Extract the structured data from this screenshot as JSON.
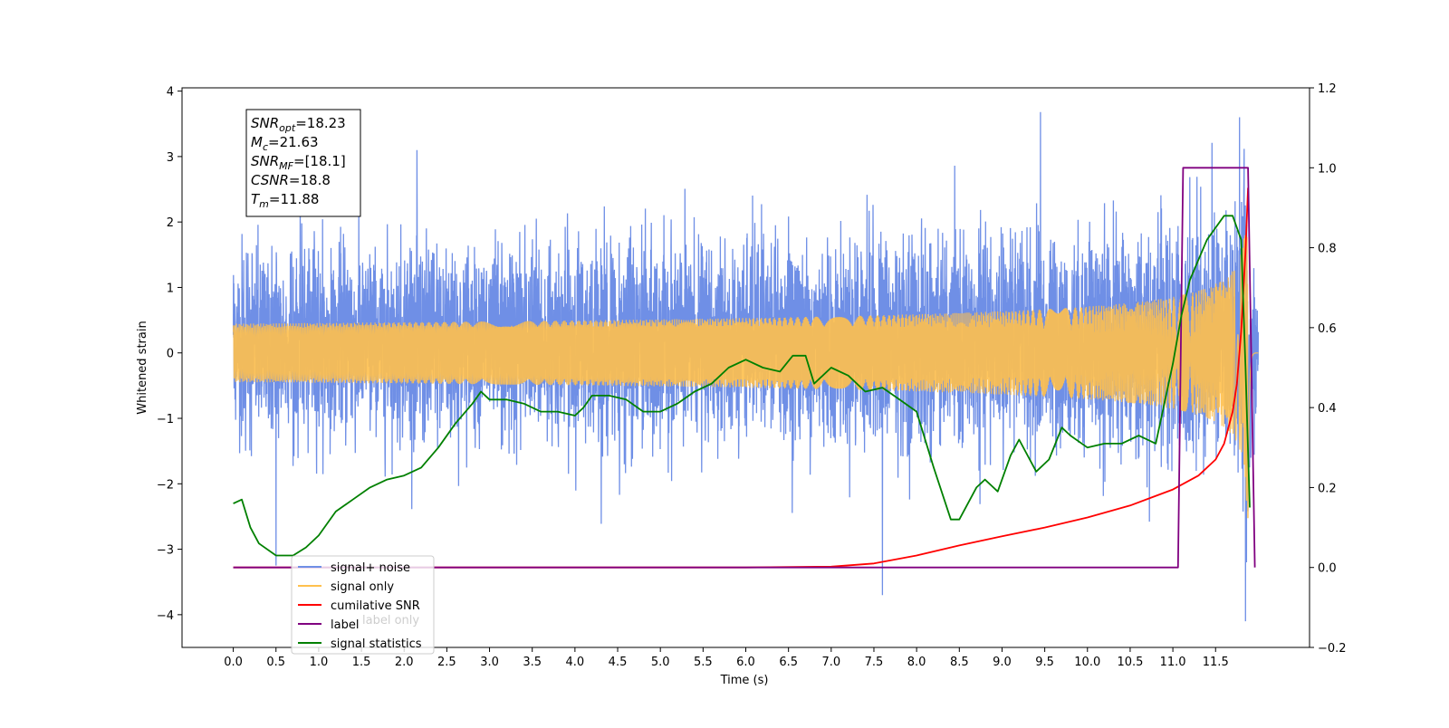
{
  "chart_data": {
    "type": "line",
    "title": "",
    "xlabel": "Time (s)",
    "ylabel": "Whitened strain",
    "ylabel_right": "",
    "xlim": [
      -0.6,
      12.6
    ],
    "ylim": [
      -4.5,
      4.05
    ],
    "ylim_right": [
      -0.2,
      1.2
    ],
    "x_ticks": [
      "0.0",
      "0.5",
      "1.0",
      "1.5",
      "2.0",
      "2.5",
      "3.0",
      "3.5",
      "4.0",
      "4.5",
      "5.0",
      "5.5",
      "6.0",
      "6.5",
      "7.0",
      "7.5",
      "8.0",
      "8.5",
      "9.0",
      "9.5",
      "10.0",
      "10.5",
      "11.0",
      "11.5"
    ],
    "y_ticks_left": [
      "4",
      "3",
      "2",
      "1",
      "0",
      "−1",
      "−2",
      "−3",
      "−4"
    ],
    "y_ticks_right": [
      "1.2",
      "1.0",
      "0.8",
      "0.6",
      "0.4",
      "0.2",
      "0.0",
      "−0.2"
    ],
    "grid": false,
    "legend_placement": "lower-left",
    "annotation": {
      "snr_opt": {
        "symbol": "SNR",
        "sub": "opt",
        "value": "=18.23"
      },
      "mc": {
        "symbol": "M",
        "sub": "c",
        "value": "=21.63"
      },
      "snr_mf": {
        "symbol": "SNR",
        "sub": "MF",
        "value": "=[18.1]"
      },
      "csnr": {
        "symbol": "CSNR",
        "sub": "",
        "value": "=18.8"
      },
      "tm": {
        "symbol": "T",
        "sub": "m",
        "value": "=11.88"
      }
    },
    "series": [
      {
        "name": "signal+ noise",
        "color": "#6f8fe6",
        "axis": "left",
        "description_type": "noisy band",
        "x_range": [
          0.0,
          12.0
        ],
        "typical_envelope": [
          -1.7,
          2.0
        ],
        "notable_peaks": [
          {
            "x": 2.15,
            "y": 3.1
          },
          {
            "x": 9.45,
            "y": 3.68
          },
          {
            "x": 11.78,
            "y": 3.6
          },
          {
            "x": 0.5,
            "y": -3.25
          },
          {
            "x": 7.6,
            "y": -3.7
          },
          {
            "x": 11.85,
            "y": -4.1
          }
        ]
      },
      {
        "name": "signal only",
        "color": "#ffc04d",
        "axis": "left",
        "description_type": "chirp",
        "x_range": [
          0.0,
          12.0
        ],
        "peak_time": 11.88,
        "peak_amplitude": 3.3
      },
      {
        "name": "cumilative SNR",
        "color": "#ff0000",
        "axis": "right",
        "x": [
          0.0,
          6.0,
          7.0,
          7.5,
          8.0,
          8.5,
          9.0,
          9.5,
          10.0,
          10.5,
          11.0,
          11.3,
          11.5,
          11.6,
          11.7,
          11.75,
          11.8,
          11.85,
          11.88
        ],
        "y": [
          0.0,
          0.0,
          0.002,
          0.01,
          0.03,
          0.055,
          0.078,
          0.1,
          0.125,
          0.155,
          0.195,
          0.23,
          0.27,
          0.31,
          0.39,
          0.46,
          0.59,
          0.79,
          0.95
        ]
      },
      {
        "name": "label",
        "color": "#800080",
        "axis": "right",
        "x": [
          0.0,
          11.06,
          11.12,
          11.88,
          11.96
        ],
        "y": [
          0.0,
          0.0,
          1.0,
          1.0,
          0.0
        ]
      },
      {
        "name": "signal statistics",
        "color": "#008000",
        "axis": "right",
        "x": [
          0.0,
          0.1,
          0.2,
          0.3,
          0.5,
          0.7,
          0.85,
          1.0,
          1.2,
          1.4,
          1.6,
          1.8,
          2.0,
          2.2,
          2.4,
          2.6,
          2.8,
          2.9,
          3.0,
          3.2,
          3.4,
          3.6,
          3.8,
          4.0,
          4.1,
          4.2,
          4.4,
          4.6,
          4.8,
          5.0,
          5.2,
          5.4,
          5.6,
          5.8,
          6.0,
          6.2,
          6.4,
          6.55,
          6.7,
          6.8,
          7.0,
          7.2,
          7.4,
          7.6,
          7.8,
          8.0,
          8.2,
          8.4,
          8.5,
          8.7,
          8.8,
          8.95,
          9.1,
          9.2,
          9.4,
          9.55,
          9.7,
          9.8,
          10.0,
          10.2,
          10.4,
          10.6,
          10.8,
          11.0,
          11.1,
          11.2,
          11.4,
          11.6,
          11.7,
          11.8,
          11.85,
          11.9
        ],
        "y": [
          0.16,
          0.17,
          0.1,
          0.06,
          0.03,
          0.03,
          0.05,
          0.08,
          0.14,
          0.17,
          0.2,
          0.22,
          0.23,
          0.25,
          0.3,
          0.36,
          0.41,
          0.44,
          0.42,
          0.42,
          0.41,
          0.39,
          0.39,
          0.38,
          0.4,
          0.43,
          0.43,
          0.42,
          0.39,
          0.39,
          0.41,
          0.44,
          0.46,
          0.5,
          0.52,
          0.5,
          0.49,
          0.53,
          0.53,
          0.46,
          0.5,
          0.48,
          0.44,
          0.45,
          0.42,
          0.39,
          0.25,
          0.12,
          0.12,
          0.2,
          0.22,
          0.19,
          0.28,
          0.32,
          0.24,
          0.27,
          0.35,
          0.33,
          0.3,
          0.31,
          0.31,
          0.33,
          0.31,
          0.51,
          0.63,
          0.72,
          0.82,
          0.88,
          0.88,
          0.82,
          0.5,
          0.15
        ]
      }
    ],
    "legend": [
      {
        "name": "signal+ noise",
        "color": "#6f8fe6"
      },
      {
        "name": "signal only",
        "color": "#ffc04d"
      },
      {
        "name": "cumilative SNR",
        "color": "#ff0000"
      },
      {
        "name": "label",
        "color": "#800080"
      },
      {
        "name": "signal statistics",
        "color": "#008000"
      }
    ],
    "hidden_legend_overlap_text": "label only"
  }
}
